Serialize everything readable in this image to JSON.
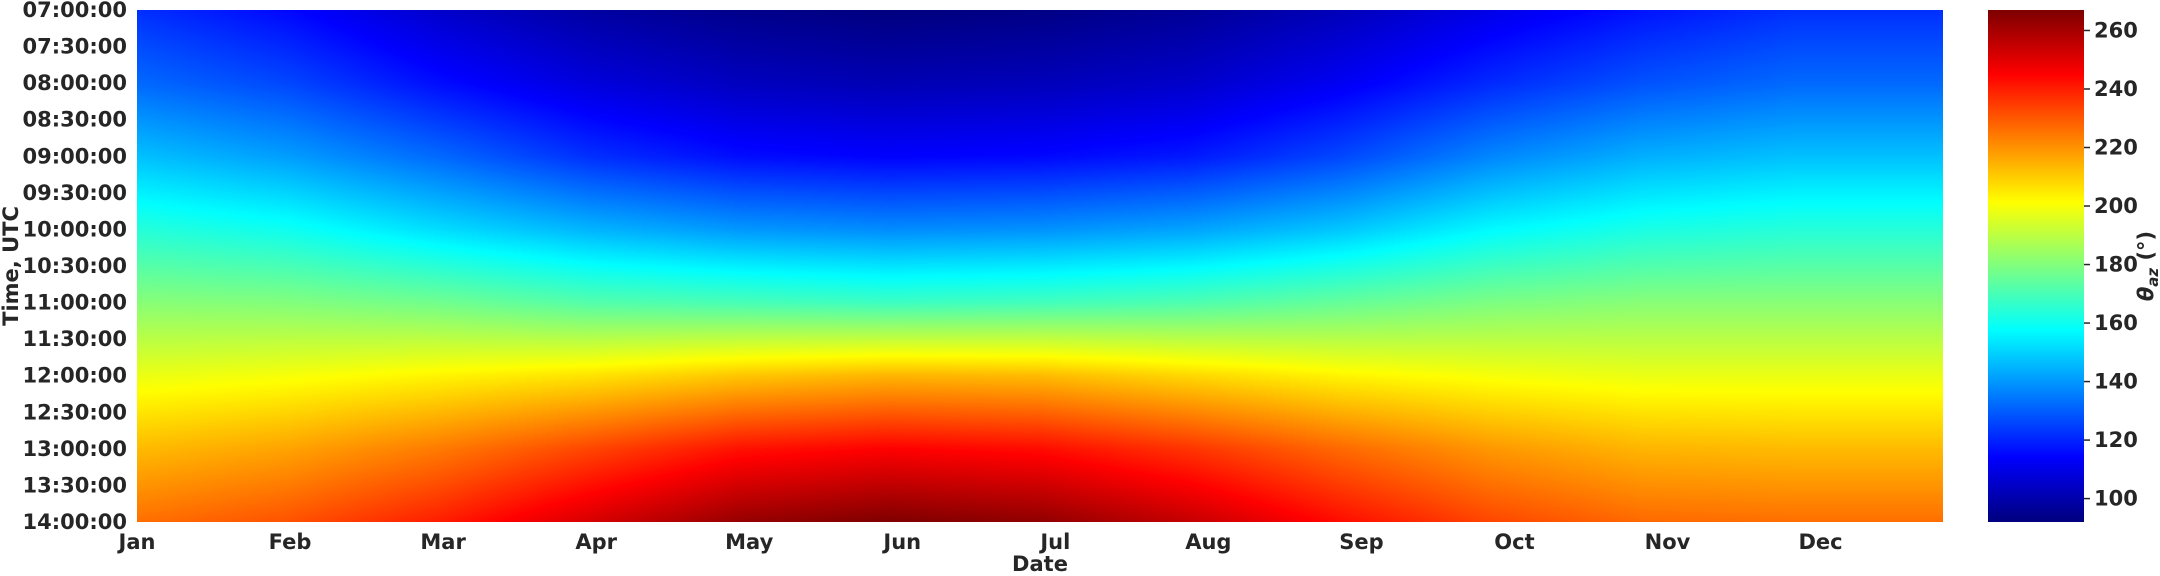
{
  "chart_data": {
    "type": "heatmap",
    "title": "",
    "xlabel": "Date",
    "ylabel": "Time, UTC",
    "colorbar_label": "θ_az (°)",
    "colorbar_symbol": "θ",
    "colorbar_subscript": "az",
    "colorbar_unit": " (°)",
    "colormap": "jet",
    "x_tick_labels": [
      "Jan",
      "Feb",
      "Mar",
      "Apr",
      "May",
      "Jun",
      "Jul",
      "Aug",
      "Sep",
      "Oct",
      "Nov",
      "Dec"
    ],
    "y_tick_labels": [
      "07:00:00",
      "07:30:00",
      "08:00:00",
      "08:30:00",
      "09:00:00",
      "09:30:00",
      "10:00:00",
      "10:30:00",
      "11:00:00",
      "11:30:00",
      "12:00:00",
      "12:30:00",
      "13:00:00",
      "13:30:00",
      "14:00:00"
    ],
    "colorbar_ticks": [
      100,
      120,
      140,
      160,
      180,
      200,
      220,
      240,
      260
    ],
    "zlim": [
      92,
      267
    ],
    "x_months": [
      "Jan",
      "Feb",
      "Mar",
      "Apr",
      "May",
      "Jun",
      "Jul",
      "Aug",
      "Sep",
      "Oct",
      "Nov",
      "Dec",
      "Jan"
    ],
    "y_times": [
      "07:00:00",
      "08:00:00",
      "09:00:00",
      "10:00:00",
      "11:00:00",
      "12:00:00",
      "13:00:00",
      "14:00:00"
    ],
    "values": [
      [
        122,
        115,
        105,
        98,
        94,
        92,
        93,
        96,
        102,
        110,
        117,
        122,
        122
      ],
      [
        132,
        126,
        116,
        108,
        103,
        101,
        102,
        105,
        112,
        121,
        128,
        132,
        132
      ],
      [
        147,
        141,
        132,
        122,
        116,
        114,
        115,
        118,
        126,
        137,
        144,
        147,
        147
      ],
      [
        164,
        160,
        152,
        145,
        140,
        138,
        139,
        142,
        148,
        157,
        162,
        164,
        164
      ],
      [
        181,
        180,
        177,
        172,
        170,
        168,
        169,
        171,
        175,
        179,
        181,
        181,
        181
      ],
      [
        198,
        200,
        203,
        206,
        211,
        214,
        213,
        208,
        203,
        200,
        198,
        198,
        198
      ],
      [
        213,
        217,
        224,
        233,
        242,
        245,
        243,
        236,
        227,
        219,
        214,
        213,
        213
      ],
      [
        226,
        231,
        240,
        252,
        263,
        267,
        264,
        255,
        243,
        233,
        227,
        226,
        226
      ]
    ]
  }
}
